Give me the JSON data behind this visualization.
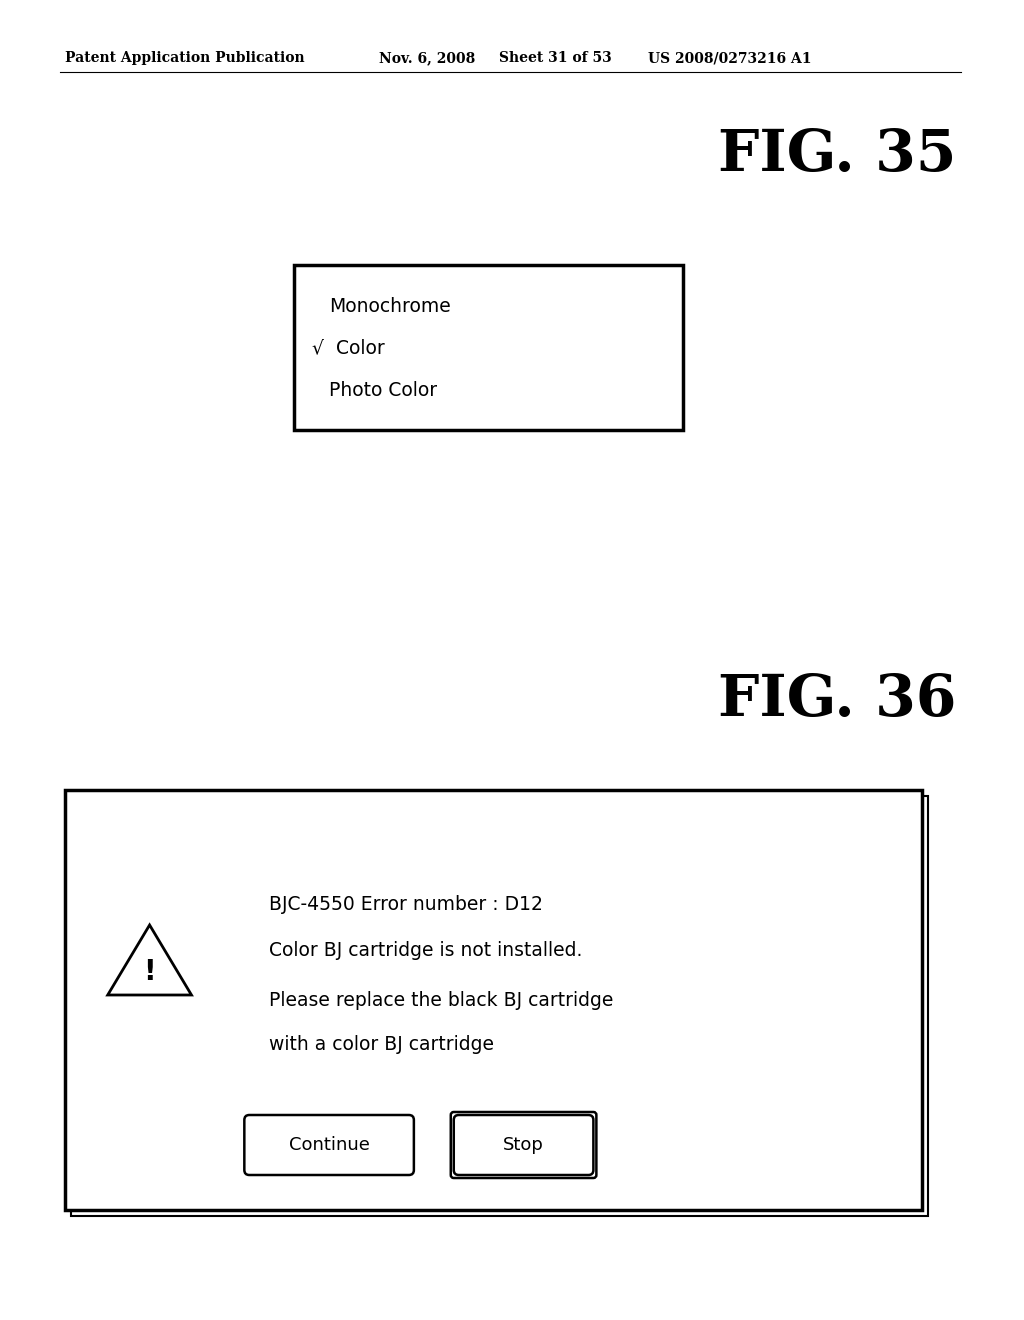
{
  "bg_color": "#ffffff",
  "header_text": "Patent Application Publication",
  "header_date": "Nov. 6, 2008",
  "header_sheet": "Sheet 31 of 53",
  "header_patent": "US 2008/0273216 A1",
  "fig35_title": "FIG. 35",
  "fig36_title": "FIG. 36",
  "fig35_items": [
    "Monochrome",
    "√  Color",
    "Photo Color"
  ],
  "fig36_error_title": "BJC-4550 Error number : D12",
  "fig36_line2": "Color BJ cartridge is not installed.",
  "fig36_line3": "Please replace the black BJ cartridge",
  "fig36_line4": "with a color BJ cartridge",
  "btn1": "Continue",
  "btn2": "Stop"
}
